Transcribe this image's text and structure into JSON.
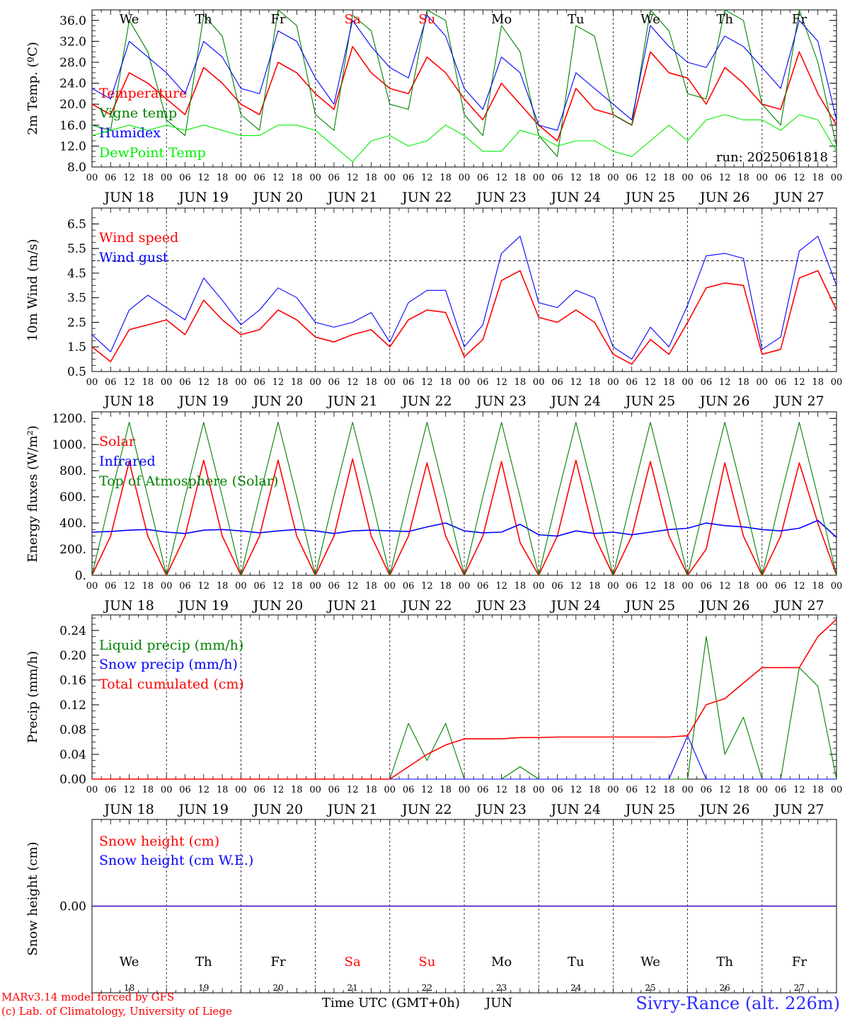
{
  "colors": {
    "red": "#ff0000",
    "green": "#008000",
    "blue": "#0000ff",
    "lightgreen": "#00ee00",
    "black": "#000000"
  },
  "chart_data": [
    {
      "type": "line",
      "ylabel": "2m Temp. (ºC)",
      "ylim": [
        8,
        38
      ],
      "yticks": [
        "8.0",
        "12.0",
        "16.0",
        "20.0",
        "24.0",
        "28.0",
        "32.0",
        "36.0"
      ],
      "x_hours": [
        0,
        6,
        12,
        18,
        24,
        30,
        36,
        42,
        48,
        54,
        60,
        66,
        72,
        78,
        84,
        90,
        96,
        102,
        108,
        114,
        120,
        126,
        132,
        138,
        144,
        150,
        156,
        162,
        168,
        174,
        180,
        186,
        192,
        198,
        204,
        210,
        216,
        222,
        228,
        234,
        240
      ],
      "annotation": "run: 2025061818",
      "series": [
        {
          "name": "Temperature",
          "color": "red",
          "values": [
            20,
            18,
            26,
            24,
            21,
            18,
            27,
            24,
            20,
            18,
            28,
            26,
            22,
            19,
            31,
            26,
            23,
            22,
            29,
            26,
            21,
            17,
            24,
            20,
            16,
            13,
            23,
            19,
            18,
            16,
            30,
            26,
            25,
            20,
            27,
            24,
            20,
            19,
            30,
            22,
            16
          ]
        },
        {
          "name": "Vigne temp",
          "color": "green",
          "values": [
            16,
            15,
            36,
            30,
            17,
            14,
            37,
            33,
            18,
            15,
            38,
            35,
            18,
            15,
            37,
            34,
            20,
            19,
            38,
            36,
            18,
            14,
            35,
            30,
            14,
            10,
            35,
            33,
            18,
            16,
            38,
            34,
            22,
            21,
            38,
            36,
            20,
            16,
            38,
            28,
            12
          ]
        },
        {
          "name": "Humidex",
          "color": "blue",
          "values": [
            23,
            21,
            32,
            29,
            26,
            22,
            32,
            29,
            23,
            22,
            34,
            32,
            25,
            20,
            36,
            31,
            27,
            25,
            37,
            33,
            23,
            19,
            29,
            26,
            16,
            15,
            26,
            23,
            20,
            17,
            35,
            31,
            28,
            27,
            33,
            31,
            27,
            23,
            36,
            32,
            17
          ]
        },
        {
          "name": "DewPoint Temp",
          "color": "lightgreen",
          "values": [
            14,
            15,
            16,
            15,
            16,
            15,
            16,
            15,
            14,
            14,
            16,
            16,
            15,
            12,
            9,
            13,
            14,
            12,
            13,
            16,
            14,
            11,
            11,
            15,
            14,
            12,
            13,
            13,
            11,
            10,
            13,
            16,
            13,
            17,
            18,
            17,
            17,
            15,
            18,
            17,
            11
          ]
        }
      ]
    },
    {
      "type": "line",
      "ylabel": "10m Wind (m/s)",
      "ylim": [
        0.5,
        6.8
      ],
      "yticks": [
        "0.5",
        "1.5",
        "2.5",
        "3.5",
        "4.5",
        "5.5",
        "6.5"
      ],
      "reference_line": 5,
      "x_hours": [
        0,
        6,
        12,
        18,
        24,
        30,
        36,
        42,
        48,
        54,
        60,
        66,
        72,
        78,
        84,
        90,
        96,
        102,
        108,
        114,
        120,
        126,
        132,
        138,
        144,
        150,
        156,
        162,
        168,
        174,
        180,
        186,
        192,
        198,
        204,
        210,
        216,
        222,
        228,
        234,
        240
      ],
      "series": [
        {
          "name": "Wind speed",
          "color": "red",
          "values": [
            1.5,
            0.9,
            2.2,
            2.4,
            2.6,
            2.0,
            3.4,
            2.6,
            2.0,
            2.2,
            3.0,
            2.6,
            1.9,
            1.7,
            2.0,
            2.2,
            1.5,
            2.6,
            3.0,
            2.9,
            1.1,
            1.8,
            4.2,
            4.6,
            2.7,
            2.5,
            3.0,
            2.5,
            1.2,
            0.8,
            1.8,
            1.2,
            2.5,
            3.9,
            4.1,
            4.0,
            1.2,
            1.4,
            4.3,
            4.6,
            3.0
          ]
        },
        {
          "name": "Wind gust",
          "color": "blue",
          "values": [
            2.0,
            1.3,
            3.0,
            3.6,
            3.1,
            2.6,
            4.3,
            3.4,
            2.4,
            3.0,
            3.9,
            3.5,
            2.5,
            2.3,
            2.5,
            2.9,
            1.7,
            3.3,
            3.8,
            3.8,
            1.5,
            2.4,
            5.3,
            6.0,
            3.3,
            3.1,
            3.8,
            3.5,
            1.5,
            1.0,
            2.3,
            1.5,
            3.2,
            5.2,
            5.3,
            5.1,
            1.4,
            1.9,
            5.4,
            6.0,
            4.0
          ]
        }
      ]
    },
    {
      "type": "line",
      "ylabel": "Energy fluxes (W/m²)",
      "ylim": [
        0,
        1250
      ],
      "yticks": [
        "0.",
        "200.",
        "400.",
        "600.",
        "800.",
        "1000.",
        "1200."
      ],
      "x_hours": [
        0,
        6,
        12,
        18,
        24,
        30,
        36,
        42,
        48,
        54,
        60,
        66,
        72,
        78,
        84,
        90,
        96,
        102,
        108,
        114,
        120,
        126,
        132,
        138,
        144,
        150,
        156,
        162,
        168,
        174,
        180,
        186,
        192,
        198,
        204,
        210,
        216,
        222,
        228,
        234,
        240
      ],
      "series": [
        {
          "name": "Solar",
          "color": "red",
          "values": [
            0,
            300,
            870,
            300,
            0,
            300,
            880,
            300,
            0,
            300,
            880,
            300,
            0,
            300,
            890,
            300,
            0,
            300,
            860,
            300,
            0,
            300,
            870,
            250,
            0,
            300,
            880,
            300,
            0,
            300,
            870,
            300,
            0,
            200,
            860,
            300,
            0,
            300,
            860,
            400,
            0
          ]
        },
        {
          "name": "Infrared",
          "color": "blue",
          "values": [
            330,
            335,
            345,
            350,
            330,
            320,
            345,
            350,
            340,
            325,
            340,
            350,
            340,
            320,
            340,
            345,
            340,
            335,
            370,
            400,
            340,
            325,
            330,
            390,
            310,
            300,
            340,
            320,
            330,
            310,
            330,
            350,
            360,
            400,
            380,
            370,
            350,
            340,
            360,
            420,
            290
          ]
        },
        {
          "name": "Top of Atmosphere (Solar)",
          "color": "green",
          "values": [
            0,
            600,
            1170,
            600,
            0,
            600,
            1170,
            600,
            0,
            600,
            1170,
            600,
            0,
            600,
            1170,
            600,
            0,
            600,
            1170,
            600,
            0,
            600,
            1170,
            600,
            0,
            600,
            1170,
            600,
            0,
            600,
            1170,
            600,
            0,
            600,
            1170,
            600,
            0,
            600,
            1170,
            600,
            0
          ]
        }
      ]
    },
    {
      "type": "line",
      "ylabel": "Precip (mm/h)",
      "ylim": [
        0,
        0.265
      ],
      "yticks": [
        "0.00",
        "0.04",
        "0.08",
        "0.12",
        "0.16",
        "0.20",
        "0.24"
      ],
      "x_hours": [
        0,
        6,
        12,
        18,
        24,
        30,
        36,
        42,
        48,
        54,
        60,
        66,
        72,
        78,
        84,
        90,
        96,
        102,
        108,
        114,
        120,
        126,
        132,
        138,
        144,
        150,
        156,
        162,
        168,
        174,
        180,
        186,
        192,
        198,
        204,
        210,
        216,
        222,
        228,
        234,
        240
      ],
      "series": [
        {
          "name": "Liquid precip (mm/h)",
          "color": "green",
          "values": [
            0,
            0,
            0,
            0,
            0,
            0,
            0,
            0,
            0,
            0,
            0,
            0,
            0,
            0,
            0,
            0,
            0,
            0.09,
            0.03,
            0.09,
            0,
            0,
            0,
            0.02,
            0,
            0,
            0,
            0,
            0,
            0,
            0,
            0,
            0,
            0.23,
            0.04,
            0.1,
            0,
            0,
            0.18,
            0.15,
            0
          ]
        },
        {
          "name": "Snow precip (mm/h)",
          "color": "blue",
          "values": [
            0,
            0,
            0,
            0,
            0,
            0,
            0,
            0,
            0,
            0,
            0,
            0,
            0,
            0,
            0,
            0,
            0,
            0,
            0,
            0,
            0,
            0,
            0,
            0,
            0,
            0,
            0,
            0,
            0,
            0,
            0,
            0,
            0.07,
            0,
            0,
            0,
            0,
            0,
            0,
            0,
            0
          ]
        },
        {
          "name": "Total cumulated (cm)",
          "color": "red",
          "values": [
            0,
            0,
            0,
            0,
            0,
            0,
            0,
            0,
            0,
            0,
            0,
            0,
            0,
            0,
            0,
            0,
            0,
            0.02,
            0.04,
            0.055,
            0.065,
            0.065,
            0.065,
            0.067,
            0.067,
            0.068,
            0.068,
            0.068,
            0.068,
            0.068,
            0.068,
            0.068,
            0.07,
            0.12,
            0.13,
            0.155,
            0.18,
            0.18,
            0.18,
            0.23,
            0.258
          ]
        }
      ]
    },
    {
      "type": "line",
      "ylabel": "Snow height (cm)",
      "yticks": [
        "0.00"
      ],
      "x_hours": [
        0,
        240
      ],
      "series": [
        {
          "name": "Snow height (cm)",
          "color": "red",
          "values": [
            0,
            0
          ]
        },
        {
          "name": "Snow height (cm W.E.)",
          "color": "blue",
          "values": [
            0,
            0
          ]
        }
      ]
    }
  ],
  "days": [
    "JUN 18",
    "JUN 19",
    "JUN 20",
    "JUN 21",
    "JUN 22",
    "JUN 23",
    "JUN 24",
    "JUN 25",
    "JUN 26",
    "JUN 27"
  ],
  "weekdays": [
    {
      "label": "We",
      "color": "black"
    },
    {
      "label": "Th",
      "color": "black"
    },
    {
      "label": "Fr",
      "color": "black"
    },
    {
      "label": "Sa",
      "color": "red"
    },
    {
      "label": "Su",
      "color": "red"
    },
    {
      "label": "Mo",
      "color": "black"
    },
    {
      "label": "Tu",
      "color": "black"
    },
    {
      "label": "We",
      "color": "black"
    },
    {
      "label": "Th",
      "color": "black"
    },
    {
      "label": "Fr",
      "color": "black"
    }
  ],
  "day_numbers": [
    "18",
    "19",
    "20",
    "21",
    "22",
    "23",
    "24",
    "25",
    "26",
    "27"
  ],
  "hour_ticks": [
    "00",
    "06",
    "12",
    "18"
  ],
  "footer": {
    "credit_line1": "MARv3.14 model forced by GFS",
    "credit_line2": "(c) Lab. of Climatology, University of Liege",
    "xlabel": "Time UTC (GMT+0h)",
    "month": "JUN",
    "station": "Sivry-Rance (alt. 226m)"
  }
}
